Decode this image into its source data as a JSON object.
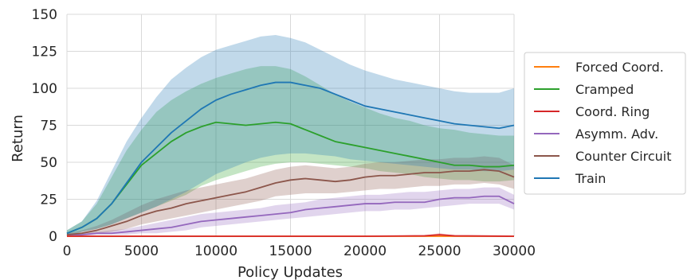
{
  "chart_data": {
    "type": "line",
    "title": "",
    "xlabel": "Policy Updates",
    "ylabel": "Return",
    "xlim": [
      0,
      30000
    ],
    "ylim": [
      0,
      150
    ],
    "xticks": [
      0,
      5000,
      10000,
      15000,
      20000,
      25000,
      30000
    ],
    "xtick_labels": [
      "0",
      "5000",
      "10000",
      "15000",
      "20000",
      "25000",
      "30000"
    ],
    "yticks": [
      0,
      25,
      50,
      75,
      100,
      125,
      150
    ],
    "ytick_labels": [
      "0",
      "25",
      "50",
      "75",
      "100",
      "125",
      "150"
    ],
    "grid": true,
    "legend_position": "right, outside plot",
    "series": [
      {
        "name": "Forced Coord.",
        "color": "#ff7f0e",
        "x": [
          0,
          5000,
          10000,
          15000,
          20000,
          25000,
          30000
        ],
        "y": [
          0,
          0,
          0,
          0,
          0,
          0,
          0
        ],
        "band_lower": [
          0,
          0,
          0,
          0,
          0,
          0,
          0
        ],
        "band_upper": [
          0,
          0,
          0,
          0,
          0,
          0,
          0
        ]
      },
      {
        "name": "Cramped",
        "color": "#2ca02c",
        "x": [
          0,
          1000,
          2000,
          3000,
          4000,
          5000,
          6000,
          7000,
          8000,
          9000,
          10000,
          11000,
          12000,
          13000,
          14000,
          15000,
          16000,
          17000,
          18000,
          19000,
          20000,
          21000,
          22000,
          23000,
          24000,
          25000,
          26000,
          27000,
          28000,
          29000,
          30000
        ],
        "y": [
          2,
          6,
          12,
          22,
          35,
          48,
          56,
          64,
          70,
          74,
          77,
          76,
          75,
          76,
          77,
          76,
          72,
          68,
          64,
          62,
          60,
          58,
          56,
          54,
          52,
          50,
          48,
          48,
          47,
          47,
          48
        ],
        "band_lower": [
          0,
          3,
          5,
          8,
          12,
          16,
          20,
          24,
          28,
          34,
          38,
          41,
          44,
          47,
          49,
          50,
          50,
          49,
          48,
          47,
          46,
          44,
          43,
          42,
          40,
          39,
          38,
          38,
          37,
          37,
          38
        ],
        "band_upper": [
          4,
          10,
          22,
          40,
          58,
          72,
          84,
          92,
          98,
          103,
          107,
          110,
          113,
          115,
          115,
          113,
          108,
          102,
          96,
          91,
          87,
          83,
          80,
          78,
          75,
          73,
          72,
          70,
          69,
          68,
          68
        ]
      },
      {
        "name": "Coord. Ring",
        "color": "#d62728",
        "x": [
          0,
          5000,
          10000,
          15000,
          20000,
          24000,
          25000,
          26000,
          30000
        ],
        "y": [
          0,
          0,
          0,
          0,
          0,
          0.3,
          1,
          0.3,
          0
        ],
        "band_lower": [
          0,
          0,
          0,
          0,
          0,
          0,
          0,
          0,
          0
        ],
        "band_upper": [
          0,
          0,
          0,
          0,
          0,
          0.6,
          2,
          0.6,
          0
        ]
      },
      {
        "name": "Asymm. Adv.",
        "color": "#9467bd",
        "x": [
          0,
          1000,
          2000,
          3000,
          4000,
          5000,
          6000,
          7000,
          8000,
          9000,
          10000,
          11000,
          12000,
          13000,
          14000,
          15000,
          16000,
          17000,
          18000,
          19000,
          20000,
          21000,
          22000,
          23000,
          24000,
          25000,
          26000,
          27000,
          28000,
          29000,
          30000
        ],
        "y": [
          1,
          1,
          2,
          2,
          3,
          4,
          5,
          6,
          8,
          10,
          11,
          12,
          13,
          14,
          15,
          16,
          18,
          19,
          20,
          21,
          22,
          22,
          23,
          23,
          23,
          25,
          26,
          26,
          27,
          27,
          22
        ],
        "band_lower": [
          0,
          0,
          1,
          1,
          1,
          2,
          2,
          3,
          4,
          6,
          7,
          8,
          9,
          10,
          11,
          12,
          13,
          14,
          15,
          16,
          17,
          17,
          18,
          18,
          19,
          20,
          21,
          22,
          22,
          22,
          18
        ],
        "band_upper": [
          2,
          2,
          3,
          4,
          5,
          7,
          9,
          11,
          13,
          15,
          16,
          17,
          18,
          19,
          21,
          22,
          23,
          25,
          26,
          27,
          28,
          28,
          29,
          30,
          30,
          31,
          32,
          32,
          33,
          33,
          28
        ]
      },
      {
        "name": "Counter Circuit",
        "color": "#8c564b",
        "x": [
          0,
          1000,
          2000,
          3000,
          4000,
          5000,
          6000,
          7000,
          8000,
          9000,
          10000,
          11000,
          12000,
          13000,
          14000,
          15000,
          16000,
          17000,
          18000,
          19000,
          20000,
          21000,
          22000,
          23000,
          24000,
          25000,
          26000,
          27000,
          28000,
          29000,
          30000
        ],
        "y": [
          1,
          2,
          4,
          7,
          10,
          14,
          17,
          19,
          22,
          24,
          26,
          28,
          30,
          33,
          36,
          38,
          39,
          38,
          37,
          38,
          40,
          41,
          41,
          42,
          43,
          43,
          44,
          44,
          45,
          44,
          40
        ],
        "band_lower": [
          0,
          1,
          2,
          3,
          5,
          8,
          10,
          12,
          14,
          16,
          18,
          20,
          22,
          24,
          27,
          28,
          29,
          29,
          29,
          30,
          31,
          32,
          32,
          33,
          34,
          34,
          35,
          35,
          36,
          35,
          32
        ],
        "band_upper": [
          2,
          4,
          7,
          11,
          16,
          21,
          25,
          28,
          31,
          33,
          35,
          37,
          39,
          42,
          45,
          47,
          48,
          47,
          46,
          47,
          49,
          50,
          50,
          51,
          52,
          52,
          53,
          53,
          54,
          53,
          48
        ]
      },
      {
        "name": "Train",
        "color": "#1f77b4",
        "x": [
          0,
          1000,
          2000,
          3000,
          4000,
          5000,
          6000,
          7000,
          8000,
          9000,
          10000,
          11000,
          12000,
          13000,
          14000,
          15000,
          16000,
          17000,
          18000,
          19000,
          20000,
          21000,
          22000,
          23000,
          24000,
          25000,
          26000,
          27000,
          28000,
          29000,
          30000
        ],
        "y": [
          2,
          6,
          12,
          22,
          36,
          50,
          60,
          70,
          78,
          86,
          92,
          96,
          99,
          102,
          104,
          104,
          102,
          100,
          96,
          92,
          88,
          86,
          84,
          82,
          80,
          78,
          76,
          75,
          74,
          73,
          75
        ],
        "band_lower": [
          0,
          3,
          5,
          8,
          12,
          16,
          20,
          25,
          30,
          36,
          42,
          46,
          50,
          53,
          55,
          56,
          56,
          55,
          54,
          52,
          51,
          50,
          49,
          48,
          47,
          46,
          45,
          45,
          44,
          44,
          45
        ],
        "band_upper": [
          4,
          10,
          24,
          44,
          64,
          80,
          94,
          106,
          114,
          121,
          126,
          129,
          132,
          135,
          136,
          134,
          131,
          126,
          121,
          116,
          112,
          109,
          106,
          104,
          102,
          100,
          98,
          97,
          97,
          97,
          100
        ]
      }
    ]
  }
}
